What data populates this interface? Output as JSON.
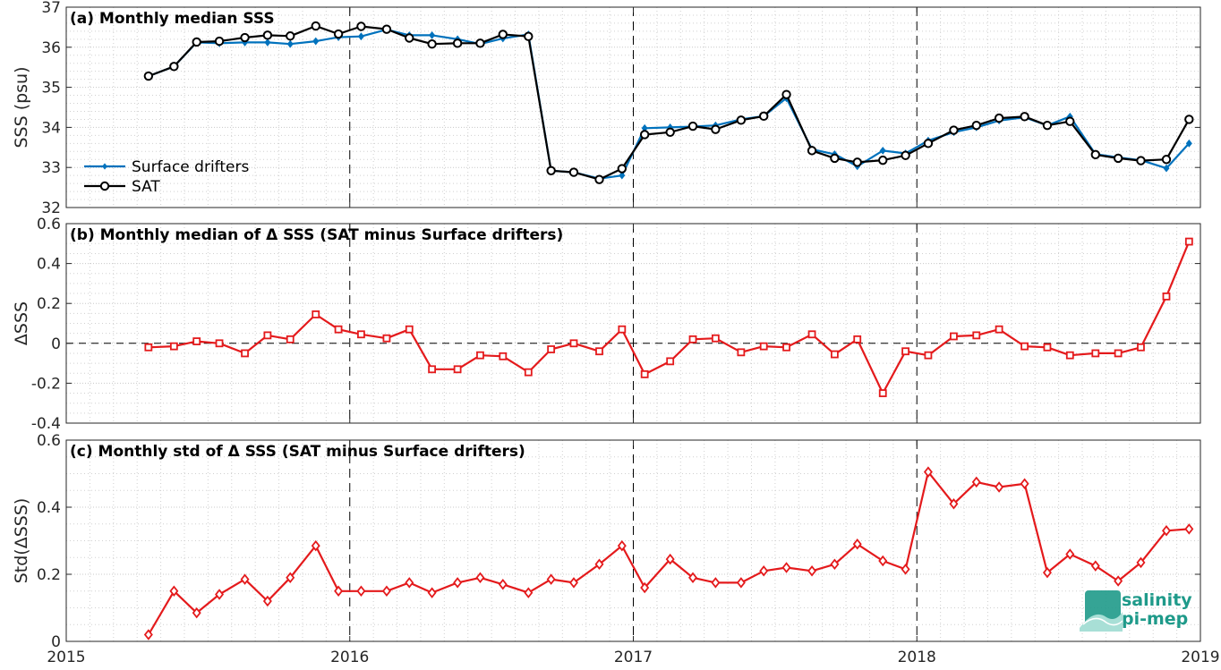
{
  "colors": {
    "drifters": "#0072BD",
    "sat": "#000000",
    "delta": "#e41a1c",
    "logo": "#1f9a8a"
  },
  "x_axis": {
    "ticks": [
      2015,
      2016,
      2017,
      2018,
      2019
    ],
    "tick_labels": [
      "2015",
      "2016",
      "2017",
      "2018",
      "2019"
    ]
  },
  "logo": {
    "line1": "salinity",
    "line2": "pi-mep"
  },
  "chart_data": [
    {
      "type": "line",
      "title": "(a) Monthly median SSS",
      "ylabel": "SSS (psu)",
      "ylim": [
        32,
        37
      ],
      "yticks": [
        32,
        33,
        34,
        35,
        36,
        37
      ],
      "grid": true,
      "legend_position": "bottom-left",
      "x_units": "decimal year",
      "x": [
        2015.29,
        2015.38,
        2015.46,
        2015.54,
        2015.63,
        2015.71,
        2015.79,
        2015.88,
        2015.96,
        2016.04,
        2016.13,
        2016.21,
        2016.29,
        2016.38,
        2016.46,
        2016.54,
        2016.63,
        2016.71,
        2016.79,
        2016.88,
        2016.96,
        2017.04,
        2017.13,
        2017.21,
        2017.29,
        2017.38,
        2017.46,
        2017.54,
        2017.63,
        2017.71,
        2017.79,
        2017.88,
        2017.96,
        2018.04,
        2018.13,
        2018.21,
        2018.29,
        2018.38,
        2018.46,
        2018.54,
        2018.63,
        2018.71,
        2018.79,
        2018.88,
        2018.96
      ],
      "series": [
        {
          "name": "Surface drifters",
          "marker": "diamond",
          "values": [
            35.28,
            35.52,
            36.12,
            36.1,
            36.12,
            36.12,
            36.08,
            36.15,
            36.25,
            36.27,
            36.44,
            36.3,
            36.3,
            36.2,
            36.08,
            36.22,
            36.32,
            32.92,
            32.88,
            32.72,
            32.8,
            33.98,
            34.0,
            34.02,
            34.05,
            34.2,
            34.28,
            34.73,
            33.45,
            33.33,
            33.03,
            33.42,
            33.35,
            33.67,
            33.88,
            34.0,
            34.17,
            34.25,
            34.05,
            34.27,
            33.33,
            33.25,
            33.18,
            32.98,
            33.6
          ]
        },
        {
          "name": "SAT",
          "marker": "circle",
          "values": [
            35.28,
            35.52,
            36.13,
            36.15,
            36.24,
            36.3,
            36.28,
            36.53,
            36.33,
            36.52,
            36.45,
            36.23,
            36.08,
            36.1,
            36.1,
            36.32,
            36.27,
            32.92,
            32.88,
            32.7,
            32.97,
            33.82,
            33.88,
            34.03,
            33.95,
            34.18,
            34.28,
            34.82,
            33.42,
            33.23,
            33.13,
            33.18,
            33.3,
            33.6,
            33.93,
            34.05,
            34.23,
            34.27,
            34.05,
            34.15,
            33.32,
            33.23,
            33.17,
            33.2,
            34.2
          ]
        }
      ]
    },
    {
      "type": "line",
      "title": "(b) Monthly median of Δ SSS (SAT minus Surface drifters)",
      "ylabel": "ΔSSS",
      "ylim": [
        -0.4,
        0.6
      ],
      "yticks": [
        -0.4,
        -0.2,
        0,
        0.2,
        0.4,
        0.6
      ],
      "ytick_labels": [
        "-0.4",
        "-0.2",
        "0",
        "0.2",
        "0.4",
        "0.6"
      ],
      "grid": true,
      "zero_line": "dashed",
      "x_units": "decimal year",
      "x": [
        2015.29,
        2015.38,
        2015.46,
        2015.54,
        2015.63,
        2015.71,
        2015.79,
        2015.88,
        2015.96,
        2016.04,
        2016.13,
        2016.21,
        2016.29,
        2016.38,
        2016.46,
        2016.54,
        2016.63,
        2016.71,
        2016.79,
        2016.88,
        2016.96,
        2017.04,
        2017.13,
        2017.21,
        2017.29,
        2017.38,
        2017.46,
        2017.54,
        2017.63,
        2017.71,
        2017.79,
        2017.88,
        2017.96,
        2018.04,
        2018.13,
        2018.21,
        2018.29,
        2018.38,
        2018.46,
        2018.54,
        2018.63,
        2018.71,
        2018.79,
        2018.88,
        2018.96
      ],
      "series": [
        {
          "marker": "square",
          "values": [
            -0.02,
            -0.015,
            0.01,
            0.0,
            -0.05,
            0.04,
            0.02,
            0.145,
            0.07,
            0.045,
            0.025,
            0.07,
            -0.13,
            -0.13,
            -0.06,
            -0.065,
            -0.145,
            -0.03,
            0.0,
            -0.04,
            0.07,
            -0.155,
            -0.09,
            0.02,
            0.025,
            -0.045,
            -0.015,
            -0.02,
            0.045,
            -0.055,
            0.02,
            -0.25,
            -0.04,
            -0.06,
            0.035,
            0.04,
            0.07,
            -0.015,
            -0.02,
            -0.06,
            -0.05,
            -0.05,
            -0.02,
            0.235,
            0.51
          ]
        }
      ]
    },
    {
      "type": "line",
      "title": "(c) Monthly std of Δ SSS (SAT minus Surface drifters)",
      "ylabel": "Std(ΔSSS)",
      "ylim": [
        0,
        0.6
      ],
      "yticks": [
        0,
        0.2,
        0.4,
        0.6
      ],
      "ytick_labels": [
        "0",
        "0.2",
        "0.4",
        "0.6"
      ],
      "grid": true,
      "x_units": "decimal year",
      "x": [
        2015.29,
        2015.38,
        2015.46,
        2015.54,
        2015.63,
        2015.71,
        2015.79,
        2015.88,
        2015.96,
        2016.04,
        2016.13,
        2016.21,
        2016.29,
        2016.38,
        2016.46,
        2016.54,
        2016.63,
        2016.71,
        2016.79,
        2016.88,
        2016.96,
        2017.04,
        2017.13,
        2017.21,
        2017.29,
        2017.38,
        2017.46,
        2017.54,
        2017.63,
        2017.71,
        2017.79,
        2017.88,
        2017.96,
        2018.04,
        2018.13,
        2018.21,
        2018.29,
        2018.38,
        2018.46,
        2018.54,
        2018.63,
        2018.71,
        2018.79,
        2018.88,
        2018.96
      ],
      "series": [
        {
          "marker": "diamond",
          "values": [
            0.02,
            0.15,
            0.085,
            0.14,
            0.185,
            0.12,
            0.19,
            0.285,
            0.15,
            0.15,
            0.15,
            0.175,
            0.145,
            0.175,
            0.19,
            0.17,
            0.145,
            0.185,
            0.175,
            0.23,
            0.285,
            0.16,
            0.245,
            0.19,
            0.175,
            0.175,
            0.21,
            0.22,
            0.21,
            0.23,
            0.29,
            0.24,
            0.215,
            0.505,
            0.41,
            0.475,
            0.46,
            0.47,
            0.205,
            0.26,
            0.225,
            0.18,
            0.235,
            0.33,
            0.335
          ]
        }
      ]
    }
  ]
}
